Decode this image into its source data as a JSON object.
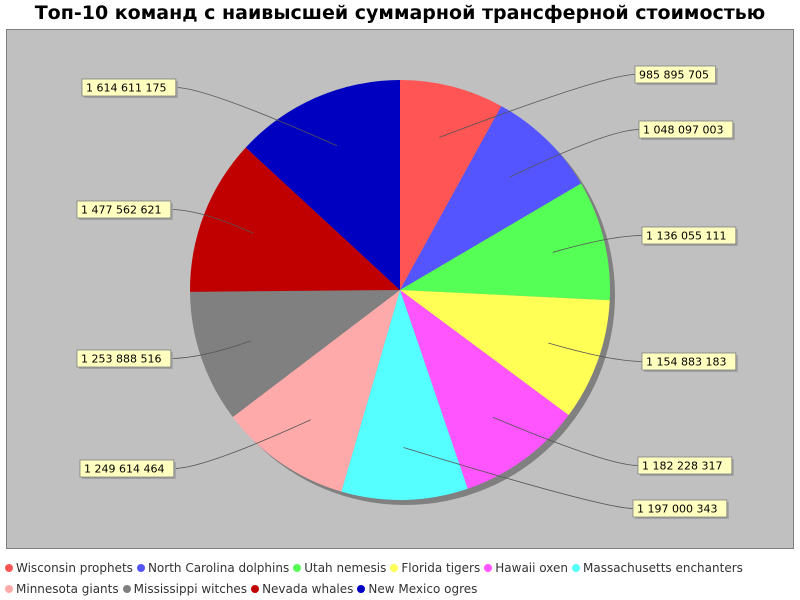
{
  "chart_data": {
    "type": "pie",
    "title": "Топ-10 команд с наивысшей суммарной трансферной стоимостью",
    "start_angle_deg": 90,
    "direction": "clockwise",
    "legend_position": "bottom",
    "slices": [
      {
        "label": "Wisconsin prophets",
        "value": 985895705,
        "value_label": "985 895 705",
        "color": "#ff5555"
      },
      {
        "label": "North Carolina dolphins",
        "value": 1048097003,
        "value_label": "1 048 097 003",
        "color": "#5555ff"
      },
      {
        "label": "Utah nemesis",
        "value": 1136055111,
        "value_label": "1 136 055 111",
        "color": "#55ff55"
      },
      {
        "label": "Florida tigers",
        "value": 1154883183,
        "value_label": "1 154 883 183",
        "color": "#ffff55"
      },
      {
        "label": "Hawaii oxen",
        "value": 1182228317,
        "value_label": "1 182 228 317",
        "color": "#ff55ff"
      },
      {
        "label": "Massachusetts enchanters",
        "value": 1197000343,
        "value_label": "1 197 000 343",
        "color": "#55ffff"
      },
      {
        "label": "Minnesota giants",
        "value": 1249614464,
        "value_label": "1 249 614 464",
        "color": "#ffaaaa"
      },
      {
        "label": "Mississippi witches",
        "value": 1253888516,
        "value_label": "1 253 888 516",
        "color": "#808080"
      },
      {
        "label": "Nevada whales",
        "value": 1477562621,
        "value_label": "1 477 562 621",
        "color": "#c00000"
      },
      {
        "label": "New Mexico ogres",
        "value": 1614611175,
        "value_label": "1 614 611 175",
        "color": "#0000c0"
      }
    ]
  }
}
